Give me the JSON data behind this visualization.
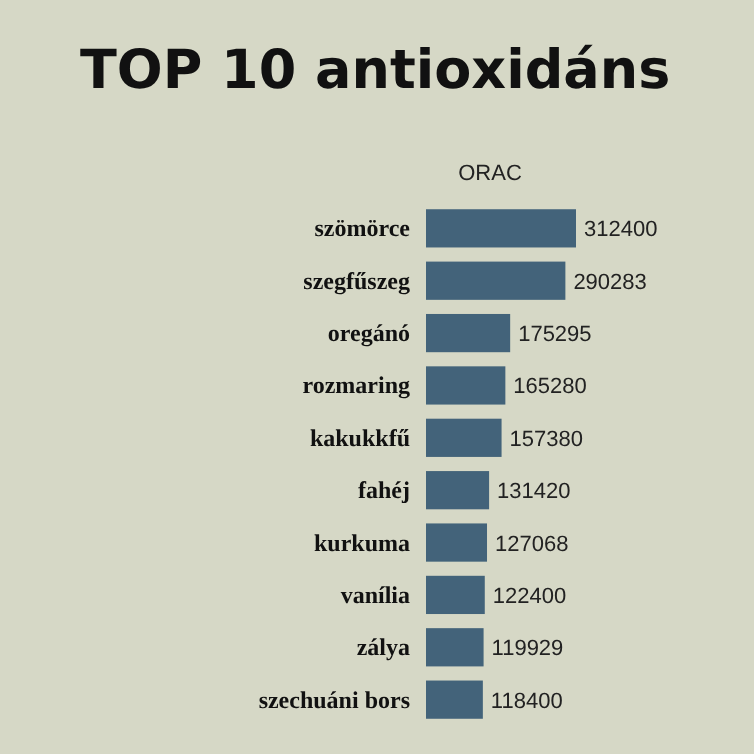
{
  "chart_data": {
    "type": "bar",
    "orientation": "horizontal",
    "title": "TOP 10 antioxidáns",
    "xlabel": "ORAC",
    "categories": [
      "szömörce",
      "szegfűszeg",
      "oregánó",
      "rozmaring",
      "kakukkfű",
      "fahéj",
      "kurkuma",
      "vanília",
      "zálya",
      "szechuáni bors"
    ],
    "values": [
      312400,
      290283,
      175295,
      165280,
      157380,
      131420,
      127068,
      122400,
      119929,
      118400
    ],
    "color": "#43637a",
    "data_labels": true
  }
}
